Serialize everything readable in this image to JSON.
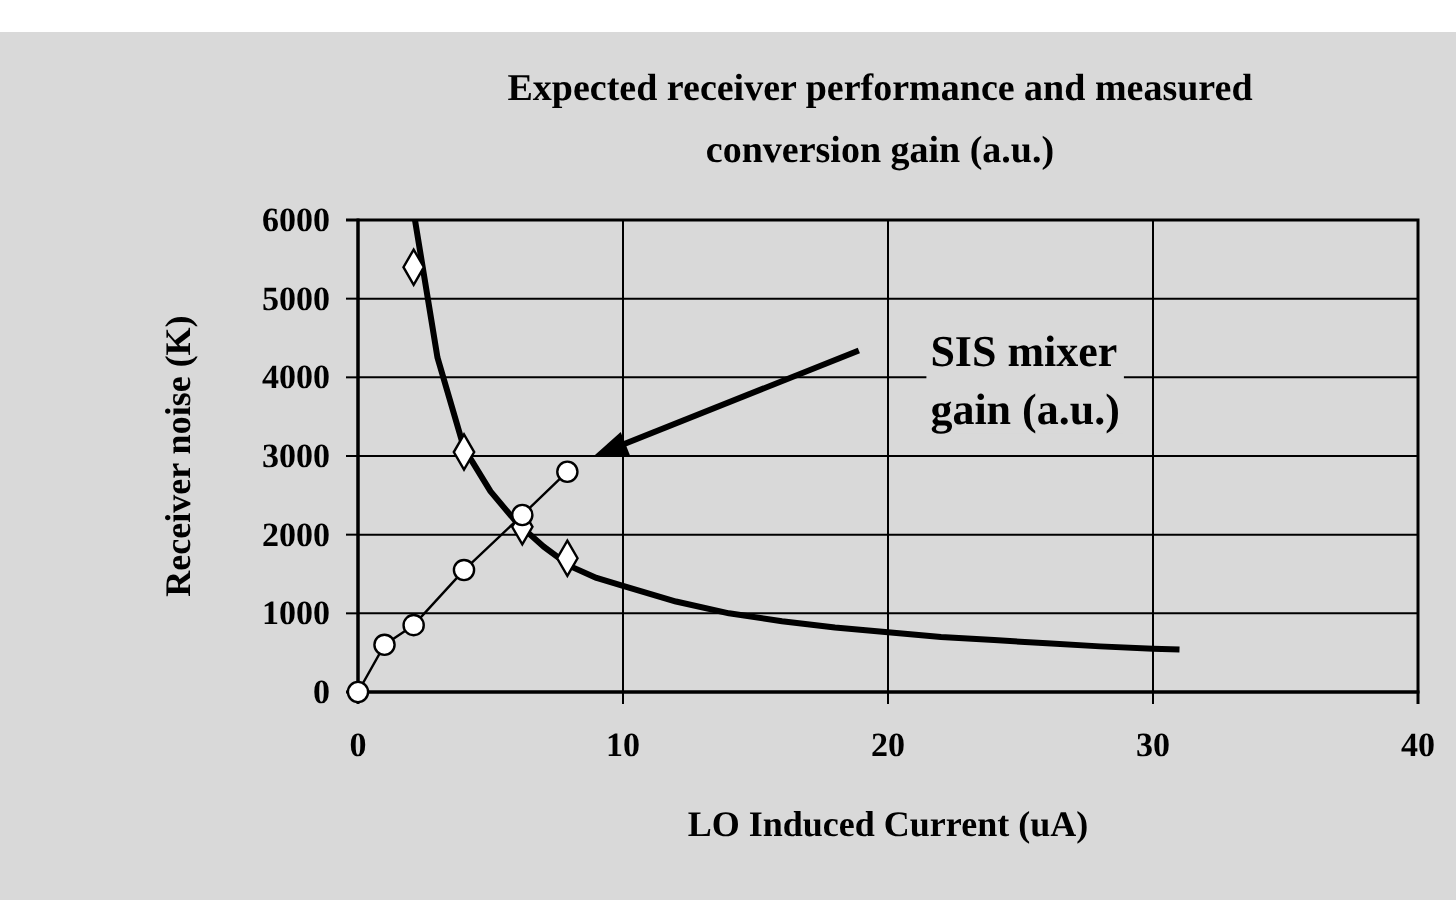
{
  "chart_data": {
    "type": "line",
    "title": "Expected receiver performance and measured conversion gain (a.u.)",
    "xlabel": "LO Induced Current (uA)",
    "ylabel": "Receiver noise (K)",
    "xlim": [
      0,
      40
    ],
    "xticks": [
      0,
      10,
      20,
      30,
      40
    ],
    "ylim": [
      0,
      6000
    ],
    "yticks": [
      0,
      1000,
      2000,
      3000,
      4000,
      5000,
      6000
    ],
    "grid": true,
    "annotations": [
      "SIS mixer gain (a.u.)"
    ],
    "series": [
      {
        "type": "line",
        "color": "#000000",
        "marker": "none",
        "x": [
          2.15,
          3,
          4,
          5,
          6,
          7,
          8,
          9,
          10,
          12,
          14,
          16,
          18,
          20,
          22,
          24,
          26,
          28,
          30,
          31
        ],
        "values": [
          6000,
          4250,
          3100,
          2550,
          2150,
          1850,
          1600,
          1450,
          1350,
          1150,
          1000,
          900,
          820,
          760,
          700,
          660,
          620,
          580,
          550,
          540
        ]
      },
      {
        "type": "scatter",
        "color": "#000000",
        "marker": "diamond",
        "x": [
          2.1,
          4,
          6.2,
          7.9
        ],
        "values": [
          5400,
          3050,
          2100,
          1700
        ]
      },
      {
        "type": "line",
        "color": "#000000",
        "marker": "circle",
        "x": [
          0,
          1,
          2.1,
          4,
          6.2,
          7.9
        ],
        "values": [
          0,
          600,
          850,
          1550,
          2250,
          2800
        ]
      }
    ]
  }
}
